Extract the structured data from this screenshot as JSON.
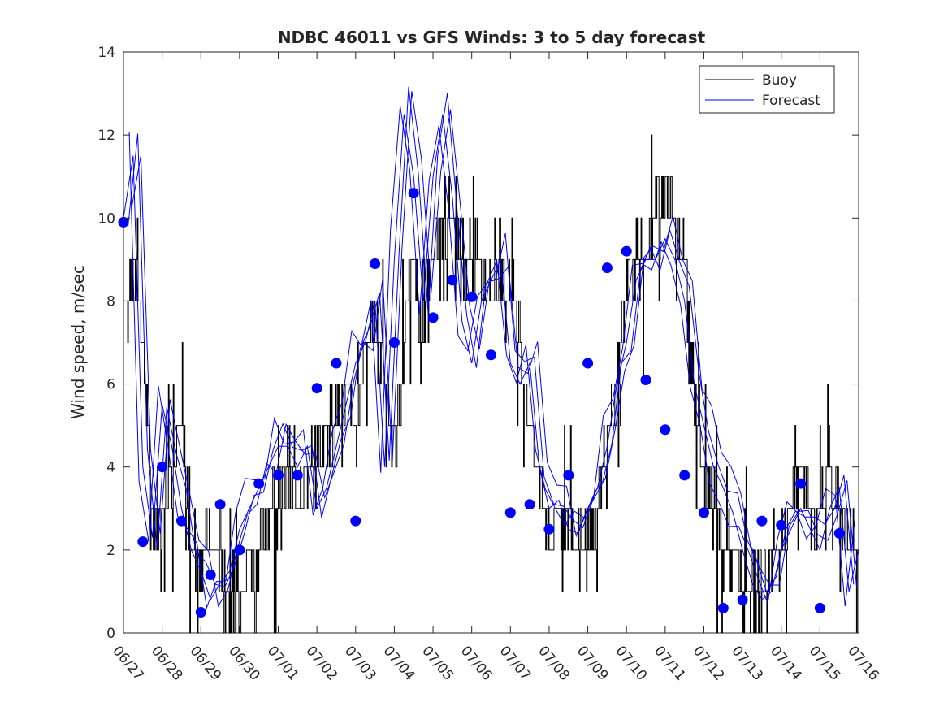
{
  "chart_data": {
    "type": "line",
    "title": "NDBC 46011 vs GFS Winds: 3 to 5 day forecast",
    "xlabel": "",
    "ylabel": "Wind speed, m/sec",
    "xlim": [
      "06/27",
      "07/16"
    ],
    "ylim": [
      0,
      14
    ],
    "x_tick_labels": [
      "06/27",
      "06/28",
      "06/29",
      "06/30",
      "07/01",
      "07/02",
      "07/03",
      "07/04",
      "07/05",
      "07/06",
      "07/07",
      "07/08",
      "07/09",
      "07/10",
      "07/11",
      "07/12",
      "07/13",
      "07/14",
      "07/15",
      "07/16"
    ],
    "y_ticks": [
      0,
      2,
      4,
      6,
      8,
      10,
      12,
      14
    ],
    "grid": false,
    "legend_position": "top-right",
    "colors": {
      "buoy": "#000000",
      "forecast": "#0000ff",
      "markers": "#0000ff"
    },
    "series": [
      {
        "name": "Buoy",
        "style": "stepped-noisy",
        "x": [
          "06/27 00:00",
          "06/27 06:00",
          "06/27 12:00",
          "06/27 18:00",
          "06/28 00:00",
          "06/28 06:00",
          "06/28 12:00",
          "06/28 18:00",
          "06/29 00:00",
          "06/29 06:00",
          "06/29 12:00",
          "06/29 18:00",
          "06/30 00:00",
          "06/30 06:00",
          "06/30 12:00",
          "06/30 18:00",
          "07/01 00:00",
          "07/01 06:00",
          "07/01 12:00",
          "07/01 18:00",
          "07/02 00:00",
          "07/02 06:00",
          "07/02 12:00",
          "07/02 18:00",
          "07/03 00:00",
          "07/03 06:00",
          "07/03 12:00",
          "07/03 18:00",
          "07/04 00:00",
          "07/04 06:00",
          "07/04 12:00",
          "07/04 18:00",
          "07/05 00:00",
          "07/05 06:00",
          "07/05 12:00",
          "07/05 18:00",
          "07/06 00:00",
          "07/06 06:00",
          "07/06 12:00",
          "07/06 18:00",
          "07/07 00:00",
          "07/07 06:00",
          "07/07 12:00",
          "07/07 18:00",
          "07/08 00:00",
          "07/08 06:00",
          "07/08 12:00",
          "07/08 18:00",
          "07/09 00:00",
          "07/09 06:00",
          "07/09 12:00",
          "07/09 18:00",
          "07/10 00:00",
          "07/10 06:00",
          "07/10 12:00",
          "07/10 18:00",
          "07/11 00:00",
          "07/11 06:00",
          "07/11 12:00",
          "07/11 18:00",
          "07/12 00:00",
          "07/12 06:00",
          "07/12 12:00",
          "07/12 18:00",
          "07/13 00:00",
          "07/13 06:00",
          "07/13 12:00",
          "07/13 18:00",
          "07/14 00:00",
          "07/14 06:00",
          "07/14 12:00",
          "07/14 18:00",
          "07/15 00:00",
          "07/15 06:00",
          "07/15 12:00",
          "07/15 18:00",
          "07/16 00:00"
        ],
        "values": [
          8,
          9,
          7,
          3,
          3,
          4,
          5,
          2,
          2,
          2,
          2,
          1,
          1,
          2,
          2,
          3,
          3,
          4,
          3,
          4,
          4,
          5,
          5,
          6,
          5,
          7,
          8,
          6,
          4,
          7,
          9,
          7,
          9,
          10,
          10,
          9,
          9,
          9,
          8,
          9,
          8,
          7,
          5,
          4,
          2,
          3,
          3,
          2,
          2,
          3,
          5,
          6,
          8,
          9,
          9,
          10,
          11,
          10,
          9,
          6,
          4,
          3,
          2,
          2,
          1,
          1,
          1,
          2,
          2,
          3,
          4,
          3,
          3,
          4,
          3,
          2,
          2
        ]
      },
      {
        "name": "Forecast",
        "style": "multiple-overlapping-runs",
        "x": [
          "06/27 00:00",
          "06/27 06:00",
          "06/27 12:00",
          "06/27 18:00",
          "06/28 00:00",
          "06/28 06:00",
          "06/28 12:00",
          "06/28 18:00",
          "06/29 00:00",
          "06/29 06:00",
          "06/29 12:00",
          "06/29 18:00",
          "06/30 00:00",
          "06/30 06:00",
          "06/30 12:00",
          "06/30 18:00",
          "07/01 00:00",
          "07/01 06:00",
          "07/01 12:00",
          "07/01 18:00",
          "07/02 00:00",
          "07/02 06:00",
          "07/02 12:00",
          "07/02 18:00",
          "07/03 00:00",
          "07/03 06:00",
          "07/03 12:00",
          "07/03 18:00",
          "07/04 00:00",
          "07/04 06:00",
          "07/04 12:00",
          "07/04 18:00",
          "07/05 00:00",
          "07/05 06:00",
          "07/05 12:00",
          "07/05 18:00",
          "07/06 00:00",
          "07/06 06:00",
          "07/06 12:00",
          "07/06 18:00",
          "07/07 00:00",
          "07/07 06:00",
          "07/07 12:00",
          "07/07 18:00",
          "07/08 00:00",
          "07/08 06:00",
          "07/08 12:00",
          "07/08 18:00",
          "07/09 00:00",
          "07/09 06:00",
          "07/09 12:00",
          "07/09 18:00",
          "07/10 00:00",
          "07/10 06:00",
          "07/10 12:00",
          "07/10 18:00",
          "07/11 00:00",
          "07/11 06:00",
          "07/11 12:00",
          "07/11 18:00",
          "07/12 00:00",
          "07/12 06:00",
          "07/12 12:00",
          "07/12 18:00",
          "07/13 00:00",
          "07/13 06:00",
          "07/13 12:00",
          "07/13 18:00",
          "07/14 00:00",
          "07/14 06:00",
          "07/14 12:00",
          "07/14 18:00",
          "07/15 00:00",
          "07/15 06:00",
          "07/15 12:00",
          "07/15 18:00",
          "07/16 00:00"
        ],
        "values": [
          10,
          11.5,
          4,
          2.3,
          5.5,
          4.5,
          3,
          2,
          1.5,
          0.8,
          1.2,
          1.5,
          2.5,
          3,
          3.5,
          4,
          4.5,
          4.5,
          4,
          4.5,
          3,
          3.5,
          4.5,
          5.5,
          6.5,
          7,
          8,
          4,
          9,
          12.5,
          11,
          8,
          11,
          12.5,
          10.5,
          7.5,
          6.5,
          8,
          8.5,
          9,
          6.5,
          6,
          6.5,
          4,
          3,
          3.2,
          2.5,
          2.4,
          3,
          3.5,
          4.5,
          6,
          7,
          8.5,
          9,
          9,
          9.5,
          9,
          8,
          6,
          5,
          4,
          3.5,
          2.9,
          2,
          1.2,
          0.8,
          1,
          2,
          2.5,
          3,
          2.5,
          2,
          3,
          3.5,
          1,
          2
        ]
      }
    ],
    "markers": {
      "name": "Forecast points",
      "x": [
        "06/27 00:00",
        "06/27 12:00",
        "06/28 00:00",
        "06/28 12:00",
        "06/29 00:00",
        "06/29 06:00",
        "06/29 12:00",
        "06/30 00:00",
        "06/30 12:00",
        "07/01 00:00",
        "07/01 12:00",
        "07/02 00:00",
        "07/02 12:00",
        "07/03 00:00",
        "07/03 12:00",
        "07/04 00:00",
        "07/04 12:00",
        "07/05 00:00",
        "07/05 12:00",
        "07/06 00:00",
        "07/06 12:00",
        "07/07 00:00",
        "07/07 12:00",
        "07/08 00:00",
        "07/08 12:00",
        "07/09 00:00",
        "07/09 12:00",
        "07/10 00:00",
        "07/10 12:00",
        "07/11 00:00",
        "07/11 12:00",
        "07/12 00:00",
        "07/12 12:00",
        "07/13 00:00",
        "07/13 12:00",
        "07/14 00:00",
        "07/14 12:00",
        "07/15 00:00",
        "07/15 12:00"
      ],
      "values": [
        9.9,
        2.2,
        4.0,
        2.7,
        0.5,
        1.4,
        3.1,
        2.0,
        3.6,
        3.8,
        3.8,
        5.9,
        6.5,
        2.7,
        8.9,
        7.0,
        10.6,
        7.6,
        8.5,
        8.1,
        6.7,
        2.9,
        3.1,
        2.5,
        3.8,
        6.5,
        8.8,
        9.2,
        6.1,
        4.9,
        3.8,
        2.9,
        0.6,
        0.8,
        2.7,
        2.6,
        3.6,
        0.6,
        2.4
      ]
    },
    "legend": [
      "Buoy",
      "Forecast"
    ]
  }
}
